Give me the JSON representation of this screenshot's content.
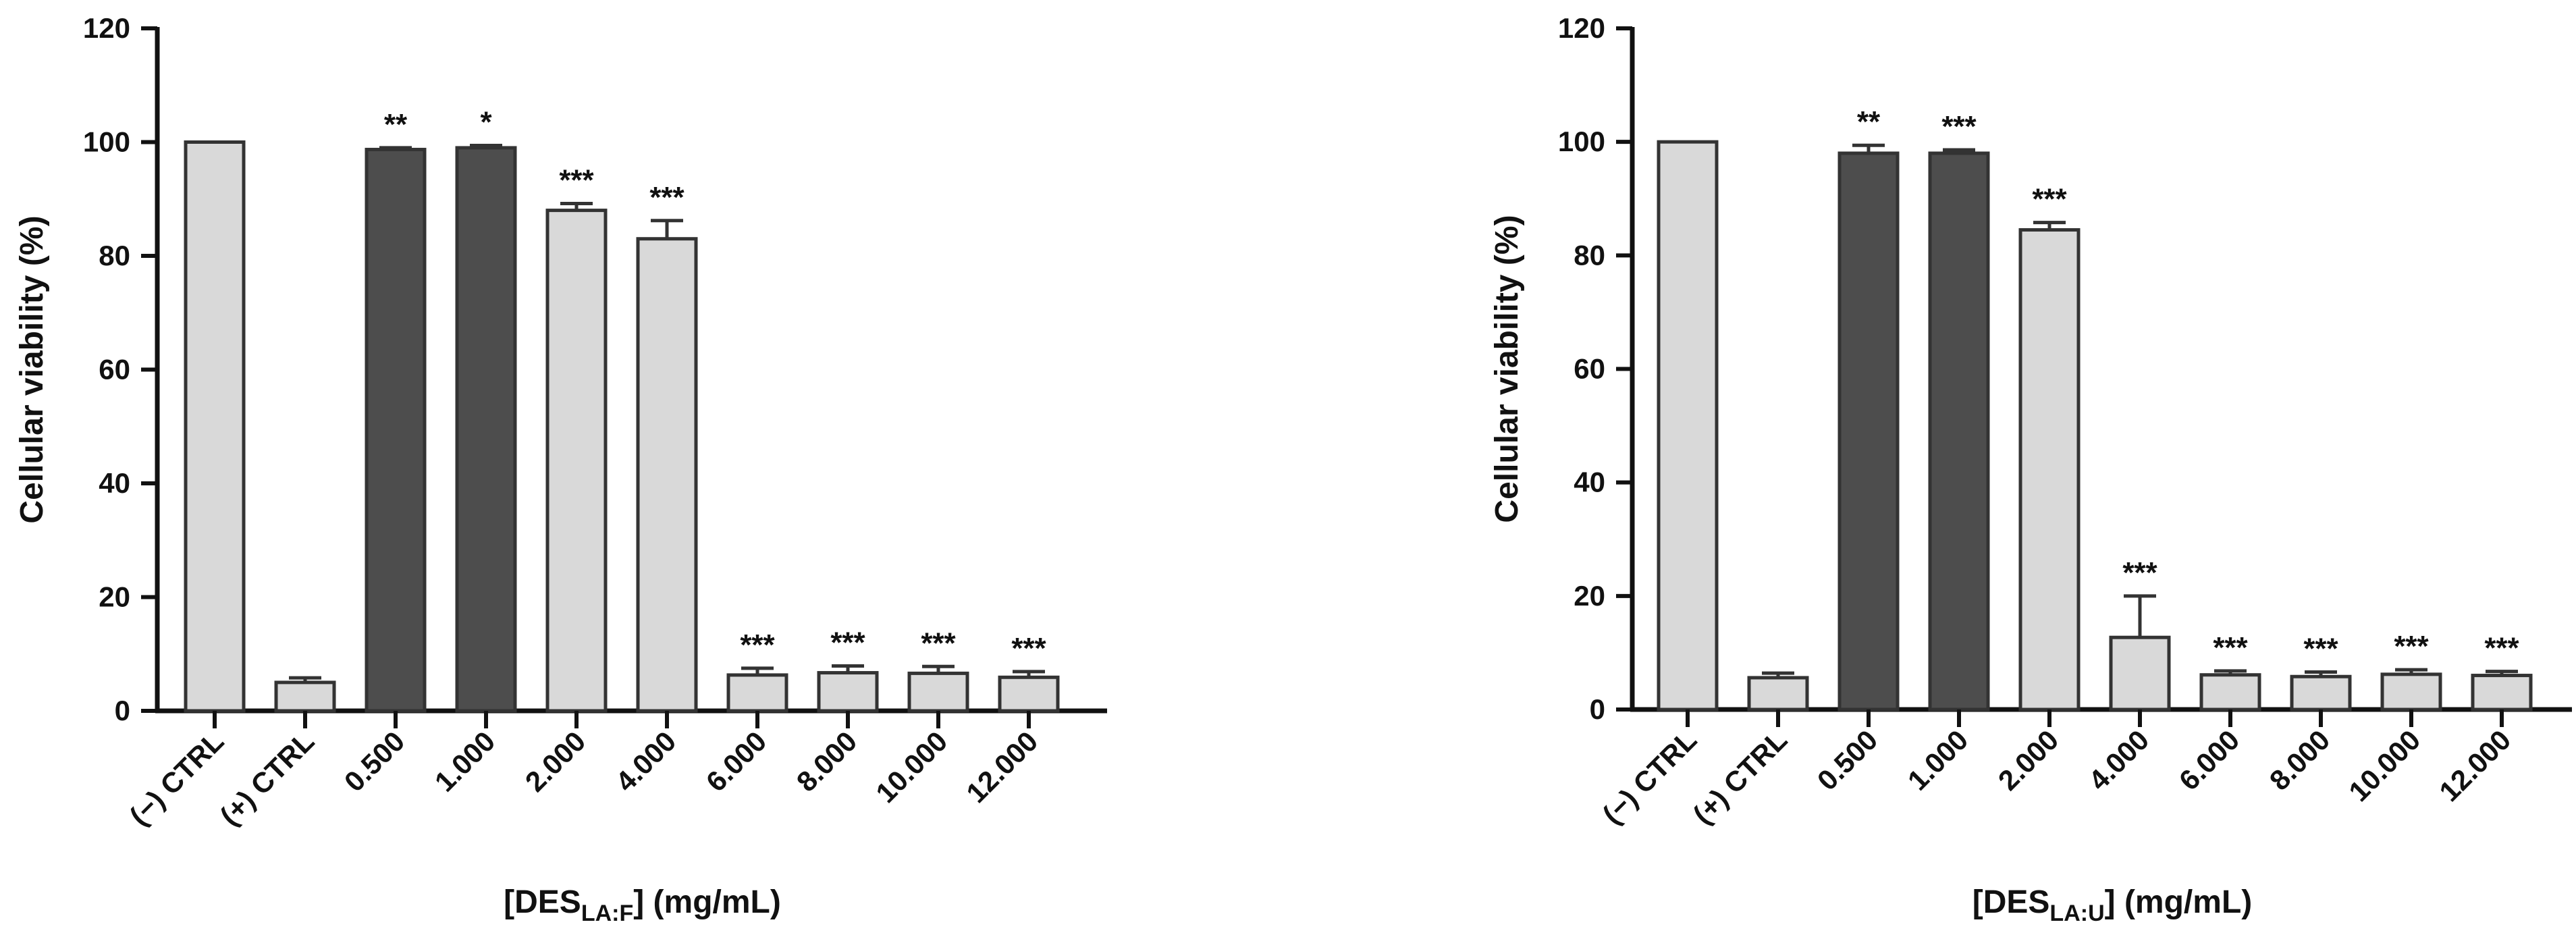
{
  "chart_data": [
    {
      "type": "bar",
      "ylabel": "Cellular viability (%)",
      "xlabel_main": "[DES",
      "xlabel_sub": "LA:F",
      "xlabel_tail": "] (mg/mL)",
      "ylim": [
        0,
        120
      ],
      "yticks": [
        "0",
        "20",
        "40",
        "60",
        "80",
        "100",
        "120"
      ],
      "categories": [
        "(−) CTRL",
        "(+) CTRL",
        "0.500",
        "1.000",
        "2.000",
        "4.000",
        "6.000",
        "8.000",
        "10.000",
        "12.000"
      ],
      "values": [
        100,
        5,
        98.7,
        99,
        88,
        83,
        6.3,
        6.7,
        6.6,
        5.9
      ],
      "errors": [
        0,
        0.8,
        0.3,
        0.4,
        1.2,
        3.2,
        1.2,
        1.2,
        1.2,
        1.0
      ],
      "significance": [
        "",
        "",
        "**",
        "*",
        "***",
        "***",
        "***",
        "***",
        "***",
        "***"
      ],
      "bar_colors": [
        "#d9d9d9",
        "#d9d9d9",
        "#4d4d4d",
        "#4d4d4d",
        "#d9d9d9",
        "#d9d9d9",
        "#d9d9d9",
        "#d9d9d9",
        "#d9d9d9",
        "#d9d9d9"
      ],
      "grid": false
    },
    {
      "type": "bar",
      "ylabel": "Cellular viability (%)",
      "xlabel_main": "[DES",
      "xlabel_sub": "LA:U",
      "xlabel_tail": "] (mg/mL)",
      "ylim": [
        0,
        120
      ],
      "yticks": [
        "0",
        "20",
        "40",
        "60",
        "80",
        "100",
        "120"
      ],
      "categories": [
        "(−) CTRL",
        "(+) CTRL",
        "0.500",
        "1.000",
        "2.000",
        "4.000",
        "6.000",
        "8.000",
        "10.000",
        "12.000"
      ],
      "values": [
        100,
        5.6,
        98,
        98,
        84.5,
        12.7,
        6.1,
        5.8,
        6.2,
        6.0
      ],
      "errors": [
        0,
        0.8,
        1.4,
        0.6,
        1.3,
        7.3,
        0.7,
        0.8,
        0.8,
        0.7
      ],
      "significance": [
        "",
        "",
        "**",
        "***",
        "***",
        "***",
        "***",
        "***",
        "***",
        "***"
      ],
      "bar_colors": [
        "#d9d9d9",
        "#d9d9d9",
        "#4d4d4d",
        "#4d4d4d",
        "#d9d9d9",
        "#d9d9d9",
        "#d9d9d9",
        "#d9d9d9",
        "#d9d9d9",
        "#d9d9d9"
      ],
      "grid": false
    }
  ]
}
